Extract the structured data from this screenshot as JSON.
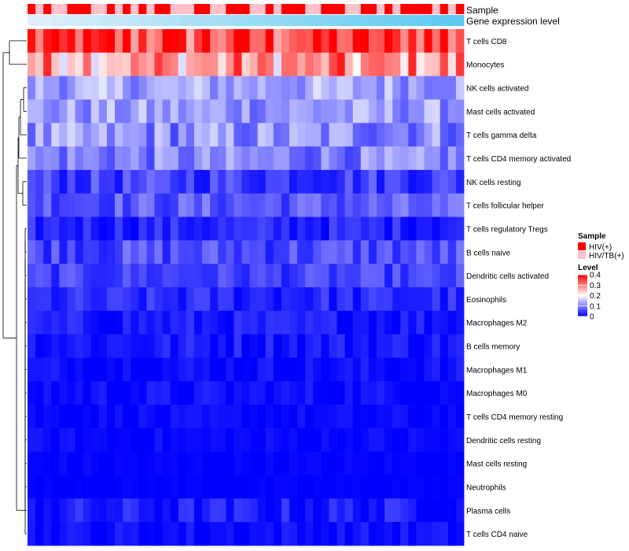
{
  "chart_data": {
    "type": "heatmap",
    "title": "",
    "annotation_labels": {
      "sample": "Sample",
      "expression": "Gene expression level"
    },
    "row_labels": [
      "T cells CD8",
      "Monocytes",
      "NK cells activated",
      "Mast cells activated",
      "T cells gamma delta",
      "T cells CD4 memory activated",
      "NK cells resting",
      "T cells follicular helper",
      "T cells regulatory  Tregs",
      "B cells naive",
      "Dendritic cells activated",
      "Eosinophils",
      "Macrophages M2",
      "B cells memory",
      "Macrophages M1",
      "Macrophages M0",
      "T cells CD4 memory resting",
      "Dendritic cells resting",
      "Mast cells resting",
      "Neutrophils",
      "Plasma cells",
      "T cells CD4 naive"
    ],
    "sample_groups": [
      "HIV(+)",
      "HIV/TB(+)",
      "HIV(+)",
      "HIV/TB(+)",
      "HIV/TB(+)",
      "HIV(+)",
      "HIV(+)",
      "HIV(+)",
      "HIV/TB(+)",
      "HIV/TB(+)",
      "HIV(+)",
      "HIV/TB(+)",
      "HIV(+)",
      "HIV/TB(+)",
      "HIV(+)",
      "HIV/TB(+)",
      "HIV(+)",
      "HIV(+)",
      "HIV/TB(+)",
      "HIV/TB(+)",
      "HIV/TB(+)",
      "HIV(+)",
      "HIV(+)",
      "HIV/TB(+)",
      "HIV/TB(+)",
      "HIV(+)",
      "HIV(+)",
      "HIV(+)",
      "HIV/TB(+)",
      "HIV/TB(+)",
      "HIV(+)",
      "HIV/TB(+)",
      "HIV(+)",
      "HIV(+)",
      "HIV(+)",
      "HIV/TB(+)",
      "HIV/TB(+)",
      "HIV(+)",
      "HIV(+)",
      "HIV(+)",
      "HIV/TB(+)",
      "HIV/TB(+)",
      "HIV(+)",
      "HIV(+)",
      "HIV/TB(+)",
      "HIV(+)",
      "HIV/TB(+)",
      "HIV(+)",
      "HIV(+)",
      "HIV(+)",
      "HIV(+)",
      "HIV/TB(+)",
      "HIV(+)",
      "HIV/TB(+)",
      "HIV(+)"
    ],
    "expression_levels": [
      0.0,
      0.019,
      0.037,
      0.056,
      0.074,
      0.093,
      0.111,
      0.13,
      0.148,
      0.167,
      0.185,
      0.204,
      0.222,
      0.241,
      0.259,
      0.278,
      0.296,
      0.315,
      0.333,
      0.352,
      0.37,
      0.389,
      0.407,
      0.426,
      0.444,
      0.463,
      0.481,
      0.5,
      0.519,
      0.537,
      0.556,
      0.574,
      0.593,
      0.611,
      0.63,
      0.648,
      0.667,
      0.685,
      0.704,
      0.722,
      0.741,
      0.759,
      0.778,
      0.796,
      0.815,
      0.833,
      0.852,
      0.87,
      0.889,
      0.907,
      0.926,
      0.944,
      0.963,
      0.981,
      1.0
    ],
    "row_means": [
      0.33,
      0.26,
      0.13,
      0.12,
      0.11,
      0.1,
      0.05,
      0.07,
      0.03,
      0.06,
      0.05,
      0.03,
      0.02,
      0.02,
      0.01,
      0.01,
      0.005,
      0.005,
      0.002,
      0.001,
      0.02,
      0.01
    ],
    "row_spread": [
      0.09,
      0.09,
      0.05,
      0.05,
      0.06,
      0.05,
      0.04,
      0.04,
      0.03,
      0.04,
      0.03,
      0.03,
      0.025,
      0.025,
      0.02,
      0.02,
      0.015,
      0.015,
      0.008,
      0.005,
      0.03,
      0.02
    ],
    "color_range": [
      0,
      0.4
    ],
    "colors": {
      "low": "#0000ff",
      "mid": "#ffffff",
      "high": "#ff0000",
      "hiv": "#ff0000",
      "hivtb": "#ffc0cb",
      "expr_low": "#ddeffa",
      "expr_high": "#5bc8f0"
    },
    "legend": {
      "sample_title": "Sample",
      "sample_entries": [
        "HIV(+)",
        "HIV/TB(+)"
      ],
      "level_title": "Level",
      "level_ticks": [
        "0.4",
        "0.3",
        "0.2",
        "0.1",
        "0"
      ],
      "level_tick_values": [
        0.4,
        0.3,
        0.2,
        0.1,
        0
      ]
    },
    "dendrogram": "hierarchical clustering of rows"
  }
}
